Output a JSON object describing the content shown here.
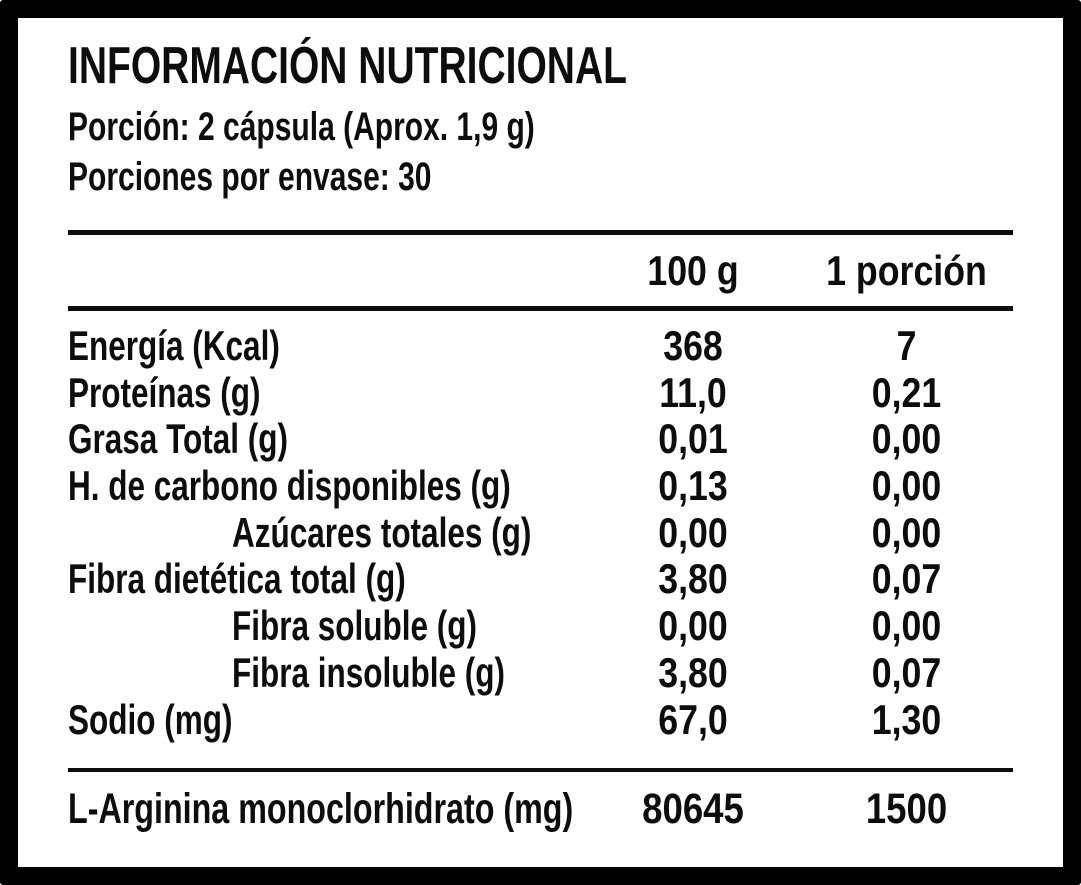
{
  "nutrition": {
    "title": "INFORMACIÓN NUTRICIONAL",
    "serving": "Porción: 2 cápsula (Aprox. 1,9 g)",
    "servings_per_container": "Porciones por envase: 30",
    "columns": {
      "per_100g": "100 g",
      "per_serving": "1 porción"
    },
    "rows": [
      {
        "name": "Energía (Kcal)",
        "per_100g": "368",
        "per_serving": "7"
      },
      {
        "name": "Proteínas (g)",
        "per_100g": "11,0",
        "per_serving": "0,21"
      },
      {
        "name": "Grasa Total (g)",
        "per_100g": "0,01",
        "per_serving": "0,00"
      },
      {
        "name": "H. de carbono disponibles (g)",
        "per_100g": "0,13",
        "per_serving": "0,00"
      },
      {
        "name": "Azúcares totales (g)",
        "per_100g": "0,00",
        "per_serving": "0,00"
      },
      {
        "name": "Fibra dietética total (g)",
        "per_100g": "3,80",
        "per_serving": "0,07"
      },
      {
        "name": "Fibra soluble (g)",
        "per_100g": "0,00",
        "per_serving": "0,00"
      },
      {
        "name": "Fibra insoluble (g)",
        "per_100g": "3,80",
        "per_serving": "0,07"
      },
      {
        "name": "Sodio (mg)",
        "per_100g": "67,0",
        "per_serving": "1,30"
      }
    ],
    "active_ingredient_row": {
      "name": "L-Arginina monoclorhidrato (mg)",
      "per_100g": "80645",
      "per_serving": "1500"
    },
    "colors": {
      "border": "#000000",
      "background": "#ffffff",
      "text": "#0d0d0d"
    }
  }
}
